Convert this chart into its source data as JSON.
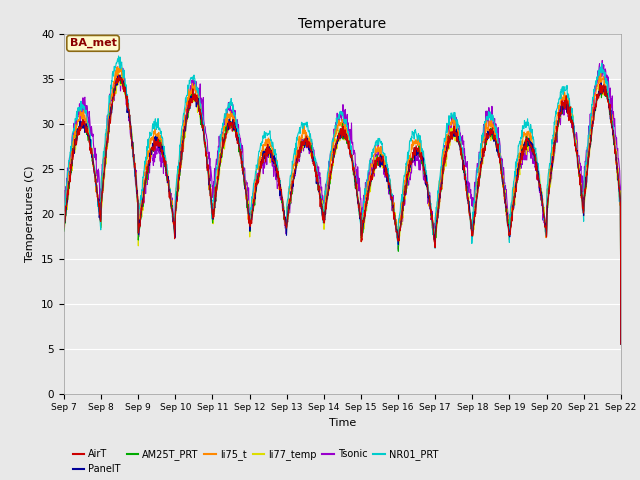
{
  "title": "Temperature",
  "xlabel": "Time",
  "ylabel": "Temperatures (C)",
  "ylim": [
    0,
    40
  ],
  "yticks": [
    0,
    5,
    10,
    15,
    20,
    25,
    30,
    35,
    40
  ],
  "date_labels": [
    "Sep 7",
    "Sep 8",
    "Sep 9",
    "Sep 10",
    "Sep 11",
    "Sep 12",
    "Sep 13",
    "Sep 14",
    "Sep 15",
    "Sep 16",
    "Sep 17",
    "Sep 18",
    "Sep 19",
    "Sep 20",
    "Sep 21",
    "Sep 22"
  ],
  "annotation": "BA_met",
  "annotation_color": "#8B0000",
  "annotation_bg": "#FFFACD",
  "series_colors": {
    "AirT": "#CC0000",
    "PanelT": "#000099",
    "AM25T_PRT": "#00AA00",
    "li75_t": "#FF8800",
    "li77_temp": "#DDDD00",
    "Tsonic": "#9900CC",
    "NR01_PRT": "#00CCCC"
  },
  "background_color": "#E8E8E8",
  "plot_bg": "#EBEBEB",
  "n_days": 15,
  "pts_per_day": 96,
  "figsize": [
    6.4,
    4.8
  ],
  "dpi": 100
}
